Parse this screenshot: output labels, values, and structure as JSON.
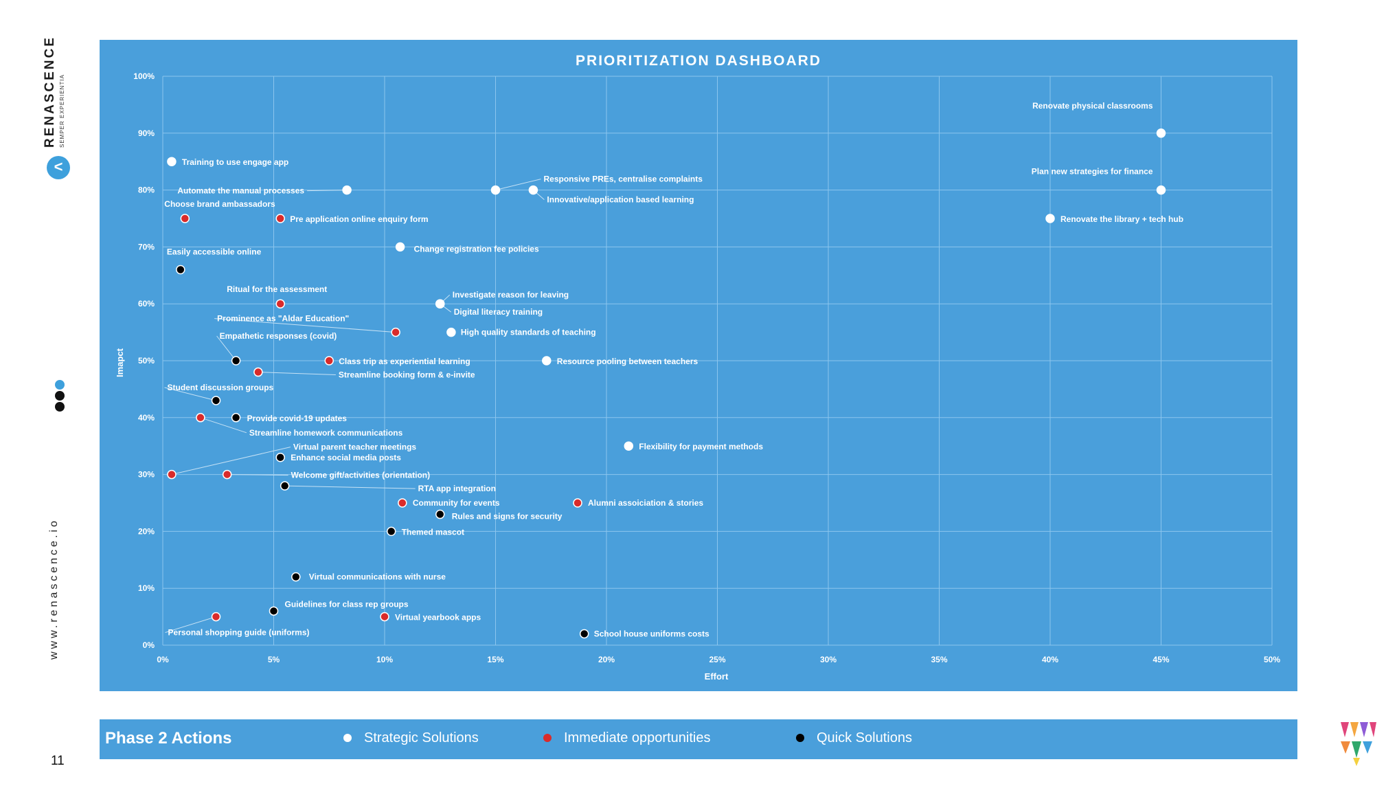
{
  "brand": {
    "name": "RENASCENCE",
    "motto": "SEMPER EXPERIENTIA",
    "badge_glyph": "<",
    "website": "www.renascence.io"
  },
  "page_number": "11",
  "colors": {
    "panel": "#4a9fdb",
    "strategic": "#ffffff",
    "immediate": "#d92b2b",
    "quick": "#000000"
  },
  "legend": {
    "title": "Phase 2 Actions",
    "items": [
      {
        "label": "Strategic Solutions",
        "color": "#ffffff"
      },
      {
        "label": "Immediate opportunities",
        "color": "#d92b2b"
      },
      {
        "label": "Quick Solutions",
        "color": "#000000"
      }
    ]
  },
  "chart_data": {
    "type": "scatter",
    "title": "PRIORITIZATION DASHBOARD",
    "xlabel": "Effort",
    "ylabel": "Imapct",
    "xlim": [
      0,
      50
    ],
    "ylim": [
      0,
      100
    ],
    "x_ticks": [
      "0%",
      "5%",
      "10%",
      "15%",
      "20%",
      "25%",
      "30%",
      "35%",
      "40%",
      "45%",
      "50%"
    ],
    "y_ticks": [
      "0%",
      "10%",
      "20%",
      "30%",
      "40%",
      "50%",
      "60%",
      "70%",
      "80%",
      "90%",
      "100%"
    ],
    "grid": true,
    "points": [
      {
        "x": 45.0,
        "y": 90,
        "category": "strategic",
        "label": "Renovate physical classrooms"
      },
      {
        "x": 0.4,
        "y": 85,
        "category": "strategic",
        "label": "Training to use engage app"
      },
      {
        "x": 8.3,
        "y": 80,
        "category": "strategic",
        "label": "Automate the manual processes"
      },
      {
        "x": 15.0,
        "y": 80,
        "category": "strategic",
        "label": "Responsive PREs, centralise complaints"
      },
      {
        "x": 16.7,
        "y": 80,
        "category": "strategic",
        "label": "Innovative/application based learning"
      },
      {
        "x": 45.0,
        "y": 80,
        "category": "strategic",
        "label": "Plan new strategies for finance"
      },
      {
        "x": 40.0,
        "y": 75,
        "category": "strategic",
        "label": "Renovate the library + tech hub"
      },
      {
        "x": 10.7,
        "y": 70,
        "category": "strategic",
        "label": "Change registration fee policies"
      },
      {
        "x": 12.5,
        "y": 60,
        "category": "strategic",
        "label": "Investigate reason for leaving"
      },
      {
        "x": 12.5,
        "y": 60,
        "category": "strategic",
        "label": "Digital literacy training"
      },
      {
        "x": 13.0,
        "y": 55,
        "category": "strategic",
        "label": "High quality standards of teaching"
      },
      {
        "x": 17.3,
        "y": 50,
        "category": "strategic",
        "label": "Resource pooling between teachers"
      },
      {
        "x": 21.0,
        "y": 35,
        "category": "strategic",
        "label": "Flexibility for payment methods"
      },
      {
        "x": 1.0,
        "y": 75,
        "category": "immediate",
        "label": "Choose brand ambassadors"
      },
      {
        "x": 5.3,
        "y": 75,
        "category": "immediate",
        "label": "Pre application online enquiry form"
      },
      {
        "x": 5.3,
        "y": 60,
        "category": "immediate",
        "label": "Ritual for the assessment"
      },
      {
        "x": 10.5,
        "y": 55,
        "category": "immediate",
        "label": "Prominence as \"Aldar Education\""
      },
      {
        "x": 7.5,
        "y": 50,
        "category": "immediate",
        "label": "Class trip as experiential learning"
      },
      {
        "x": 4.3,
        "y": 48,
        "category": "immediate",
        "label": "Streamline booking form & e-invite"
      },
      {
        "x": 1.7,
        "y": 40,
        "category": "immediate",
        "label": "Streamline homework communications"
      },
      {
        "x": 0.4,
        "y": 30,
        "category": "immediate",
        "label": "Virtual parent teacher meetings"
      },
      {
        "x": 2.9,
        "y": 30,
        "category": "immediate",
        "label": "Welcome gift/activities (orientation)"
      },
      {
        "x": 10.8,
        "y": 25,
        "category": "immediate",
        "label": "Community for events"
      },
      {
        "x": 18.7,
        "y": 25,
        "category": "immediate",
        "label": "Alumni assoiciation & stories"
      },
      {
        "x": 10.0,
        "y": 5,
        "category": "immediate",
        "label": "Virtual yearbook apps"
      },
      {
        "x": 2.4,
        "y": 5,
        "category": "immediate",
        "label": "Personal shopping guide (uniforms)"
      },
      {
        "x": 0.8,
        "y": 66,
        "category": "quick",
        "label": "Easily accessible online"
      },
      {
        "x": 3.3,
        "y": 50,
        "category": "quick",
        "label": "Empathetic responses (covid)"
      },
      {
        "x": 2.4,
        "y": 43,
        "category": "quick",
        "label": "Student discussion groups"
      },
      {
        "x": 3.3,
        "y": 40,
        "category": "quick",
        "label": "Provide covid-19 updates"
      },
      {
        "x": 5.3,
        "y": 33,
        "category": "quick",
        "label": "Enhance social media posts"
      },
      {
        "x": 5.5,
        "y": 28,
        "category": "quick",
        "label": "RTA app integration"
      },
      {
        "x": 12.5,
        "y": 23,
        "category": "quick",
        "label": "Rules and signs for security"
      },
      {
        "x": 10.3,
        "y": 20,
        "category": "quick",
        "label": "Themed mascot"
      },
      {
        "x": 6.0,
        "y": 12,
        "category": "quick",
        "label": "Virtual communications with nurse"
      },
      {
        "x": 5.0,
        "y": 6,
        "category": "quick",
        "label": "Guidelines for class rep groups"
      },
      {
        "x": 19.0,
        "y": 2,
        "category": "quick",
        "label": "School house uniforms costs"
      }
    ]
  }
}
